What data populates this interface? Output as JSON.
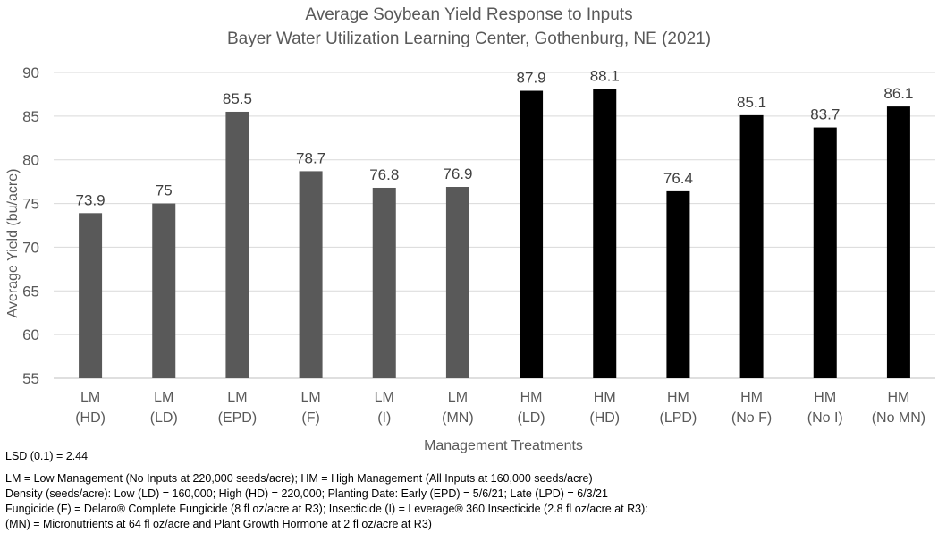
{
  "chart_data": {
    "type": "bar",
    "title": "Average Soybean Yield Response to Inputs",
    "subtitle": "Bayer Water Utilization Learning Center, Gothenburg, NE (2021)",
    "xlabel": "Management Treatments",
    "ylabel": "Average Yield (bu/acre)",
    "ylim": [
      55,
      90
    ],
    "yticks": [
      55,
      60,
      65,
      70,
      75,
      80,
      85,
      90
    ],
    "grid": true,
    "categories": [
      {
        "line1": "LM",
        "line2": "(HD)"
      },
      {
        "line1": "LM",
        "line2": "(LD)"
      },
      {
        "line1": "LM",
        "line2": "(EPD)"
      },
      {
        "line1": "LM",
        "line2": "(F)"
      },
      {
        "line1": "LM",
        "line2": "(I)"
      },
      {
        "line1": "LM",
        "line2": "(MN)"
      },
      {
        "line1": "HM",
        "line2": "(LD)"
      },
      {
        "line1": "HM",
        "line2": "(HD)"
      },
      {
        "line1": "HM",
        "line2": "(LPD)"
      },
      {
        "line1": "HM",
        "line2": "(No F)"
      },
      {
        "line1": "HM",
        "line2": "(No I)"
      },
      {
        "line1": "HM",
        "line2": "(No MN)"
      }
    ],
    "values": [
      73.9,
      75,
      85.5,
      78.7,
      76.8,
      76.9,
      87.9,
      88.1,
      76.4,
      85.1,
      83.7,
      86.1
    ],
    "value_labels": [
      "73.9",
      "75",
      "85.5",
      "78.7",
      "76.8",
      "76.9",
      "87.9",
      "88.1",
      "76.4",
      "85.1",
      "83.7",
      "86.1"
    ],
    "bar_colors": [
      "#595959",
      "#595959",
      "#595959",
      "#595959",
      "#595959",
      "#595959",
      "#000000",
      "#000000",
      "#000000",
      "#000000",
      "#000000",
      "#000000"
    ]
  },
  "notes": {
    "lsd": "LSD (0.1) = 2.44",
    "line1": "LM = Low Management (No Inputs at 220,000 seeds/acre); HM = High Management (All Inputs at 160,000 seeds/acre)",
    "line2": "Density (seeds/acre): Low (LD) = 160,000; High (HD) = 220,000; Planting Date: Early (EPD) = 5/6/21; Late (LPD) = 6/3/21",
    "line3": "Fungicide (F) = Delaro® Complete Fungicide (8 fl oz/acre at R3); Insecticide (I) = Leverage® 360 Insecticide (2.8 fl oz/acre at R3):",
    "line4": "(MN) = Micronutrients at 64 fl oz/acre and Plant Growth Hormone at 2 fl oz/acre at R3)"
  }
}
